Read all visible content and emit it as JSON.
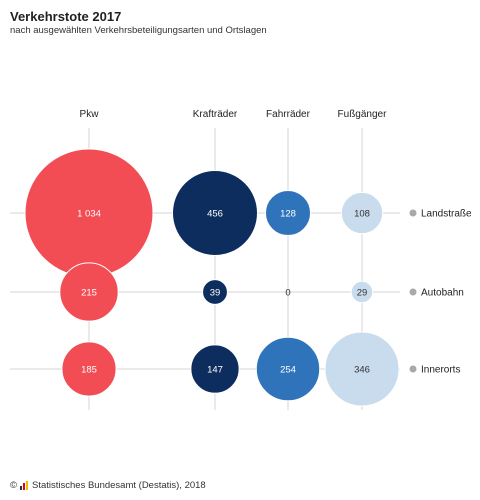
{
  "title": "Verkehrstote 2017",
  "subtitle": "nach ausgewählten Verkehrsbeteiligungsarten und Ortslagen",
  "footer": {
    "copyright_symbol": "©",
    "source": "Statistisches Bundesamt (Destatis), 2018"
  },
  "chart_data": {
    "type": "bubble",
    "title": "Verkehrstote 2017",
    "subtitle": "nach ausgewählten Verkehrsbeteiligungsarten und Ortslagen",
    "columns": [
      {
        "label": "Pkw",
        "color": "#f24c54"
      },
      {
        "label": "Krafträder",
        "color": "#0d2d5e"
      },
      {
        "label": "Fahrräder",
        "color": "#2f74bb"
      },
      {
        "label": "Fußgänger",
        "color": "#c9dcee"
      }
    ],
    "rows": [
      "Landstraße",
      "Autobahn",
      "Innerorts"
    ],
    "values": [
      [
        1034,
        456,
        128,
        108
      ],
      [
        215,
        39,
        0,
        29
      ],
      [
        185,
        147,
        254,
        346
      ]
    ],
    "value_labels": [
      [
        "1 034",
        "456",
        "128",
        "108"
      ],
      [
        "215",
        "39",
        "0",
        "29"
      ],
      [
        "185",
        "147",
        "254",
        "346"
      ]
    ]
  }
}
